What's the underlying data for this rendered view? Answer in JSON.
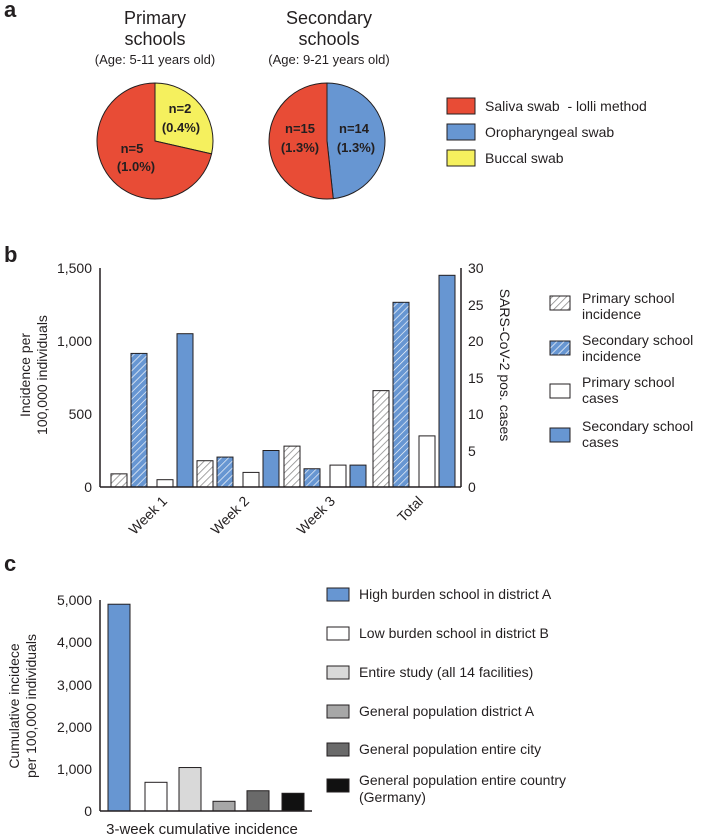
{
  "panels": {
    "a": "a",
    "b": "b",
    "c": "c"
  },
  "colors": {
    "red": "#e84c36",
    "blue": "#6796d2",
    "yellow": "#f5f05e",
    "white": "#ffffff",
    "light_grey": "#d9d9d9",
    "mid_grey": "#a7a7a7",
    "dark_grey": "#6a6a6a",
    "black": "#111111",
    "hatch_grey": "#8c8c8c"
  },
  "chart_data": [
    {
      "type": "pie",
      "title": [
        "Primary",
        "schools"
      ],
      "subtitle": "(Age: 5-11 years old)",
      "slices": [
        {
          "name": "Saliva swab  - lolli method",
          "value": 5,
          "label": [
            "n=5",
            "(1.0%)"
          ],
          "color": "#e84c36"
        },
        {
          "name": "Buccal swab",
          "value": 2,
          "label": [
            "n=2",
            "(0.4%)"
          ],
          "color": "#f5f05e"
        }
      ]
    },
    {
      "type": "pie",
      "title": [
        "Secondary",
        "schools"
      ],
      "subtitle": "(Age: 9-21 years old)",
      "slices": [
        {
          "name": "Saliva swab  - lolli method",
          "value": 15,
          "label": [
            "n=15",
            "(1.3%)"
          ],
          "color": "#e84c36"
        },
        {
          "name": "Oropharyngeal swab",
          "value": 14,
          "label": [
            "n=14",
            "(1.3%)"
          ],
          "color": "#6796d2"
        }
      ],
      "legend": [
        {
          "label": "Saliva swab  - lolli method",
          "color": "#e84c36"
        },
        {
          "label": "Oropharyngeal swab",
          "color": "#6796d2"
        },
        {
          "label": "Buccal swab",
          "color": "#f5f05e"
        }
      ]
    },
    {
      "type": "bar",
      "categories": [
        "Week 1",
        "Week 2",
        "Week 3",
        "Total"
      ],
      "ylabel": [
        "Incidence per",
        "100,000 individuals"
      ],
      "y2label": "SARS-CoV-2 pos. cases",
      "ylim": [
        0,
        1500
      ],
      "y2lim": [
        0,
        30
      ],
      "yticks": [
        "0",
        "500",
        "1,000",
        "1,500"
      ],
      "y2ticks": [
        "0",
        "5",
        "10",
        "15",
        "20",
        "25",
        "30"
      ],
      "series": [
        {
          "name": [
            "Primary school",
            "incidence"
          ],
          "axis": "left",
          "values": [
            90,
            180,
            280,
            660
          ],
          "style": "hatch-grey"
        },
        {
          "name": [
            "Secondary school",
            "incidence"
          ],
          "axis": "left",
          "values": [
            915,
            205,
            125,
            1265
          ],
          "style": "hatch-blue"
        },
        {
          "name": [
            "Primary school",
            "cases"
          ],
          "axis": "right",
          "values": [
            1,
            2,
            3,
            7
          ],
          "style": "white"
        },
        {
          "name": [
            "Secondary school",
            "cases"
          ],
          "axis": "right",
          "values": [
            21,
            5,
            3,
            29
          ],
          "style": "blue"
        }
      ]
    },
    {
      "type": "bar",
      "xlabel": "3-week cumulative incidence",
      "ylabel": [
        "Cumulative incidece",
        "per 100,000 individuals"
      ],
      "ylim": [
        0,
        5000
      ],
      "yticks": [
        "0",
        "1,000",
        "2,000",
        "3,000",
        "4,000",
        "5,000"
      ],
      "series": [
        {
          "name": [
            "High burden school in district A"
          ],
          "value": 4900,
          "color": "#6796d2"
        },
        {
          "name": [
            "Low burden school in district B"
          ],
          "value": 680,
          "color": "#ffffff"
        },
        {
          "name": [
            "Entire study (all 14 facilities)"
          ],
          "value": 1030,
          "color": "#d9d9d9"
        },
        {
          "name": [
            "General population district A"
          ],
          "value": 230,
          "color": "#a7a7a7"
        },
        {
          "name": [
            "General population entire city"
          ],
          "value": 480,
          "color": "#6a6a6a"
        },
        {
          "name": [
            "General population entire country",
            "(Germany)"
          ],
          "value": 420,
          "color": "#111111"
        }
      ]
    }
  ]
}
